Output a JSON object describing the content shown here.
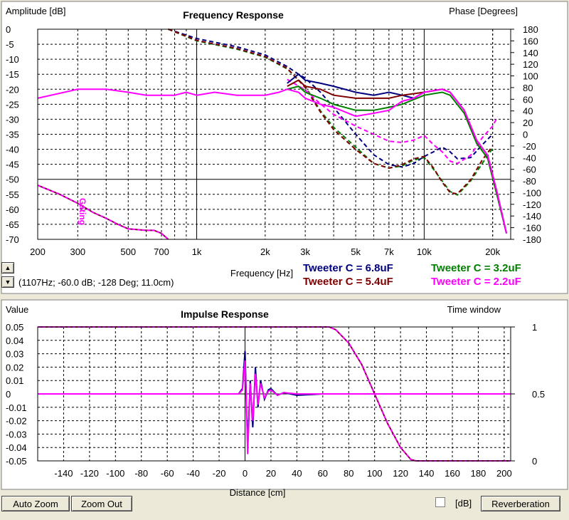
{
  "frequency_panel": {
    "title": "Frequency Response",
    "left_axis_label": "Amplitude [dB]",
    "right_axis_label": "Phase [Degrees]",
    "x_axis_label": "Frequency [Hz]",
    "cursor_readout": "(1107Hz; -60.0 dB; -128 Deg; 11.0cm)",
    "gating_label": "Gating",
    "spin_up": "▲",
    "spin_down": "▼",
    "legend": [
      {
        "label": "Tweeter C = 6.8uF",
        "color": "#00007f"
      },
      {
        "label": "Tweeter C = 3.2uF",
        "color": "#007f00"
      },
      {
        "label": "Tweeter C = 5.4uF",
        "color": "#7f0000"
      },
      {
        "label": "Tweeter C = 2.2uF",
        "color": "#ff00ff"
      }
    ]
  },
  "impulse_panel": {
    "title": "Impulse Response",
    "left_axis_label": "Value",
    "right_axis_label": "Time window",
    "x_axis_label": "Distance [cm]"
  },
  "buttons": {
    "auto_zoom": "Auto Zoom",
    "zoom_out": "Zoom Out",
    "db_checkbox_label": "[dB]",
    "reverberation": "Reverberation"
  },
  "chart_data": [
    {
      "type": "line",
      "title": "Frequency Response",
      "xlabel": "Frequency [Hz]",
      "ylabel": "Amplitude [dB]",
      "y2label": "Phase [Degrees]",
      "xscale": "log",
      "xlim": [
        200,
        24000
      ],
      "ylim": [
        -70,
        0
      ],
      "y2lim": [
        -180,
        180
      ],
      "grid": true,
      "x_ticks": [
        {
          "v": 200,
          "label": "200"
        },
        {
          "v": 300,
          "label": "300"
        },
        {
          "v": 500,
          "label": "500"
        },
        {
          "v": 700,
          "label": "700"
        },
        {
          "v": 1000,
          "label": "1k"
        },
        {
          "v": 2000,
          "label": "2k"
        },
        {
          "v": 3000,
          "label": "3k"
        },
        {
          "v": 5000,
          "label": "5k"
        },
        {
          "v": 7000,
          "label": "7k"
        },
        {
          "v": 10000,
          "label": "10k"
        },
        {
          "v": 20000,
          "label": "20k"
        }
      ],
      "y_ticks": [
        "0",
        "-5",
        "-10",
        "-15",
        "-20",
        "-25",
        "-30",
        "-35",
        "-40",
        "-45",
        "-50",
        "-55",
        "-60",
        "-65",
        "-70"
      ],
      "y2_ticks": [
        "180",
        "160",
        "140",
        "120",
        "100",
        "80",
        "60",
        "40",
        "20",
        "0",
        "-20",
        "-40",
        "-60",
        "-80",
        "-100",
        "-120",
        "-140",
        "-160",
        "-180"
      ],
      "series": [
        {
          "name": "Tweeter C = 6.8uF",
          "color": "#00007f",
          "amplitude": [
            [
              2500,
              -18
            ],
            [
              2800,
              -15
            ],
            [
              3000,
              -17
            ],
            [
              3500,
              -18
            ],
            [
              4000,
              -19
            ],
            [
              5000,
              -21
            ],
            [
              6000,
              -22
            ],
            [
              7000,
              -21
            ],
            [
              8000,
              -22
            ],
            [
              9000,
              -23
            ],
            [
              10000,
              -21
            ],
            [
              12000,
              -20
            ],
            [
              13000,
              -21
            ],
            [
              15000,
              -27
            ],
            [
              17000,
              -37
            ],
            [
              19000,
              -42
            ],
            [
              21000,
              -55
            ],
            [
              23000,
              -68
            ]
          ],
          "phase": [
            [
              750,
              180
            ],
            [
              1000,
              164
            ],
            [
              1500,
              150
            ],
            [
              2000,
              136
            ],
            [
              2500,
              116
            ],
            [
              2800,
              103
            ],
            [
              3000,
              96
            ],
            [
              3500,
              72
            ],
            [
              4000,
              46
            ],
            [
              5000,
              0
            ],
            [
              6000,
              -35
            ],
            [
              7000,
              -52
            ],
            [
              8000,
              -56
            ],
            [
              9000,
              -50
            ],
            [
              10000,
              -38
            ],
            [
              11000,
              -30
            ],
            [
              12000,
              -22
            ],
            [
              13000,
              -30
            ],
            [
              14000,
              -42
            ],
            [
              16000,
              -40
            ],
            [
              18000,
              -18
            ],
            [
              20000,
              0
            ]
          ]
        },
        {
          "name": "Tweeter C = 3.2uF",
          "color": "#007f00",
          "amplitude": [
            [
              2500,
              -20
            ],
            [
              2800,
              -19
            ],
            [
              3000,
              -21
            ],
            [
              3500,
              -23
            ],
            [
              4000,
              -25
            ],
            [
              5000,
              -27
            ],
            [
              6000,
              -27
            ],
            [
              7000,
              -26
            ],
            [
              8000,
              -25
            ],
            [
              10000,
              -22
            ],
            [
              12000,
              -21
            ],
            [
              13000,
              -22
            ],
            [
              15000,
              -28
            ],
            [
              17000,
              -38
            ],
            [
              19000,
              -43
            ],
            [
              21000,
              -56
            ],
            [
              23000,
              -68
            ]
          ],
          "phase": [
            [
              750,
              180
            ],
            [
              1000,
              160
            ],
            [
              1500,
              146
            ],
            [
              2000,
              132
            ],
            [
              2500,
              112
            ],
            [
              3000,
              82
            ],
            [
              3500,
              40
            ],
            [
              4000,
              12
            ],
            [
              5000,
              -22
            ],
            [
              6000,
              -50
            ],
            [
              7000,
              -58
            ],
            [
              8000,
              -54
            ],
            [
              9000,
              -44
            ],
            [
              10000,
              -40
            ],
            [
              11000,
              -60
            ],
            [
              12000,
              -80
            ],
            [
              13000,
              -98
            ],
            [
              14000,
              -104
            ],
            [
              16000,
              -80
            ],
            [
              18000,
              -50
            ],
            [
              20000,
              -24
            ]
          ]
        },
        {
          "name": "Tweeter C = 5.4uF",
          "color": "#7f0000",
          "amplitude": [
            [
              2500,
              -19
            ],
            [
              2800,
              -17
            ],
            [
              3000,
              -19
            ],
            [
              3500,
              -20
            ],
            [
              4000,
              -22
            ],
            [
              5000,
              -23
            ],
            [
              6000,
              -23
            ],
            [
              7000,
              -23
            ],
            [
              8000,
              -22
            ],
            [
              10000,
              -21
            ],
            [
              12000,
              -20
            ],
            [
              13000,
              -21
            ],
            [
              15000,
              -27
            ],
            [
              17000,
              -37
            ],
            [
              19000,
              -42
            ],
            [
              21000,
              -55
            ],
            [
              23000,
              -68
            ]
          ],
          "phase": [
            [
              750,
              180
            ],
            [
              1000,
              161
            ],
            [
              1500,
              147
            ],
            [
              2000,
              133
            ],
            [
              2500,
              113
            ],
            [
              3000,
              80
            ],
            [
              3500,
              38
            ],
            [
              4000,
              8
            ],
            [
              5000,
              -26
            ],
            [
              6000,
              -50
            ],
            [
              7000,
              -58
            ],
            [
              8000,
              -52
            ],
            [
              9000,
              -42
            ],
            [
              10000,
              -38
            ],
            [
              11000,
              -58
            ],
            [
              12000,
              -82
            ],
            [
              13000,
              -100
            ],
            [
              14000,
              -102
            ],
            [
              16000,
              -78
            ],
            [
              18000,
              -44
            ],
            [
              20000,
              -20
            ]
          ]
        },
        {
          "name": "Tweeter C = 2.2uF",
          "color": "#ff00ff",
          "amplitude": [
            [
              200,
              -23
            ],
            [
              300,
              -20
            ],
            [
              400,
              -20
            ],
            [
              500,
              -21
            ],
            [
              600,
              -22
            ],
            [
              700,
              -22
            ],
            [
              800,
              -22
            ],
            [
              900,
              -21
            ],
            [
              1000,
              -22
            ],
            [
              1200,
              -21
            ],
            [
              1500,
              -22
            ],
            [
              2000,
              -22
            ],
            [
              2300,
              -21
            ],
            [
              2500,
              -20
            ],
            [
              2800,
              -21
            ],
            [
              3000,
              -23
            ],
            [
              3500,
              -25
            ],
            [
              4000,
              -26
            ],
            [
              5000,
              -29
            ],
            [
              6000,
              -28
            ],
            [
              7000,
              -27
            ],
            [
              8000,
              -24
            ],
            [
              9000,
              -23
            ],
            [
              10000,
              -21
            ],
            [
              12000,
              -20
            ],
            [
              13000,
              -21
            ],
            [
              15000,
              -27
            ],
            [
              17000,
              -37
            ],
            [
              19000,
              -42
            ],
            [
              21000,
              -55
            ],
            [
              23000,
              -68
            ]
          ],
          "phase": [
            [
              2500,
              94
            ],
            [
              3000,
              76
            ],
            [
              3500,
              52
            ],
            [
              4000,
              34
            ],
            [
              5000,
              14
            ],
            [
              6000,
              0
            ],
            [
              7000,
              -12
            ],
            [
              8000,
              -14
            ],
            [
              9000,
              -10
            ],
            [
              10000,
              -2
            ],
            [
              11000,
              -18
            ],
            [
              12000,
              -30
            ],
            [
              13000,
              -46
            ],
            [
              14000,
              -50
            ],
            [
              16000,
              -36
            ],
            [
              18000,
              -6
            ],
            [
              20000,
              14
            ],
            [
              21000,
              30
            ]
          ]
        }
      ],
      "gating": [
        [
          200,
          -52
        ],
        [
          250,
          -55
        ],
        [
          300,
          -58
        ],
        [
          350,
          -61
        ],
        [
          400,
          -63
        ],
        [
          450,
          -65
        ],
        [
          500,
          -66.5
        ],
        [
          600,
          -67
        ],
        [
          650,
          -67
        ],
        [
          700,
          -68
        ],
        [
          750,
          -70
        ]
      ]
    },
    {
      "type": "line",
      "title": "Impulse Response",
      "xlabel": "Distance [cm]",
      "ylabel": "Value",
      "y2label": "Time window",
      "xlim": [
        -160,
        205
      ],
      "ylim": [
        -0.05,
        0.05
      ],
      "y2lim": [
        0,
        1
      ],
      "grid": true,
      "x_ticks": [
        "-140",
        "-120",
        "-100",
        "-80",
        "-60",
        "-40",
        "-20",
        "0",
        "20",
        "40",
        "60",
        "80",
        "100",
        "120",
        "140",
        "160",
        "180",
        "200"
      ],
      "y_ticks": [
        "0.05",
        "0.04",
        "0.03",
        "0.02",
        "0.01",
        "0",
        "-0.01",
        "-0.02",
        "-0.03",
        "-0.04",
        "-0.05"
      ],
      "y2_ticks": [
        "1",
        "0.5",
        "0"
      ],
      "window": [
        [
          -160,
          1
        ],
        [
          65,
          1
        ],
        [
          70,
          0.98
        ],
        [
          80,
          0.88
        ],
        [
          90,
          0.72
        ],
        [
          100,
          0.5
        ],
        [
          110,
          0.28
        ],
        [
          120,
          0.1
        ],
        [
          128,
          0.01
        ],
        [
          132,
          0
        ],
        [
          205,
          0
        ]
      ],
      "series": [
        {
          "name": "Tweeter C = 6.8uF",
          "color": "#00007f",
          "values": [
            [
              -160,
              0
            ],
            [
              -5,
              0
            ],
            [
              -2,
              0.004
            ],
            [
              0,
              0.032
            ],
            [
              1,
              -0.002
            ],
            [
              2,
              -0.04
            ],
            [
              4,
              0.01
            ],
            [
              6,
              -0.025
            ],
            [
              8,
              0.02
            ],
            [
              10,
              -0.01
            ],
            [
              12,
              0.01
            ],
            [
              15,
              -0.004
            ],
            [
              18,
              0.003
            ],
            [
              20,
              0.004
            ],
            [
              25,
              -0.001
            ],
            [
              30,
              0.001
            ],
            [
              40,
              -0.001
            ],
            [
              60,
              0
            ],
            [
              205,
              0
            ]
          ]
        },
        {
          "name": "Tweeter C = 2.2uF",
          "color": "#ff00ff",
          "values": [
            [
              -160,
              0
            ],
            [
              -5,
              0
            ],
            [
              -2,
              0.003
            ],
            [
              0,
              0.025
            ],
            [
              1,
              -0.004
            ],
            [
              2,
              -0.045
            ],
            [
              4,
              0.008
            ],
            [
              6,
              -0.02
            ],
            [
              8,
              0.015
            ],
            [
              10,
              -0.008
            ],
            [
              12,
              0.008
            ],
            [
              15,
              -0.003
            ],
            [
              18,
              0.002
            ],
            [
              20,
              0.003
            ],
            [
              25,
              -0.001
            ],
            [
              30,
              0.001
            ],
            [
              40,
              0
            ],
            [
              205,
              0
            ]
          ]
        }
      ]
    }
  ]
}
